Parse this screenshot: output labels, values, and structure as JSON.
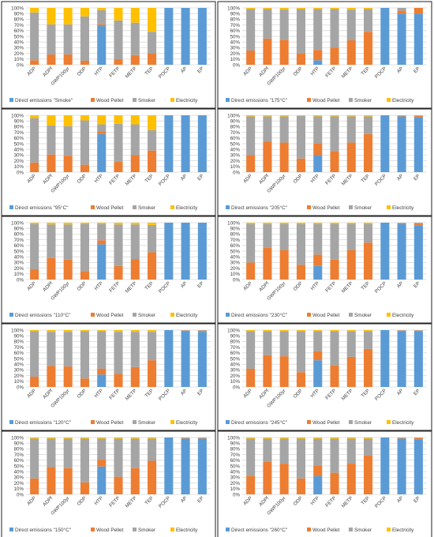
{
  "colors": {
    "direct": "#5b9bd5",
    "wood": "#ed7d31",
    "smoker": "#a5a5a5",
    "electricity": "#ffc000",
    "gridline": "#d9d9d9",
    "frame": "#222222",
    "text": "#404040"
  },
  "categories": [
    "ADP",
    "ADPf",
    "GWP100yr",
    "ODP",
    "HTP",
    "FETP",
    "METP",
    "TEP",
    "POCP",
    "AP",
    "EP"
  ],
  "yticks": [
    "0%",
    "10%",
    "20%",
    "30%",
    "40%",
    "50%",
    "60%",
    "70%",
    "80%",
    "90%",
    "100%"
  ],
  "series_labels": [
    "Wood Pellet",
    "Smoker",
    "Electricity"
  ],
  "chart_data": [
    {
      "type": "bar",
      "stacked": true,
      "legend_direct": "Direct emissions \"Smoke\"",
      "ylim": [
        0,
        100
      ],
      "series": [
        {
          "name": "Direct emissions \"Smoke\"",
          "values": [
            0,
            0,
            0,
            0,
            68,
            0,
            0,
            0,
            100,
            100,
            100
          ]
        },
        {
          "name": "Wood Pellet",
          "values": [
            8,
            18,
            18,
            7,
            3,
            10,
            17,
            20,
            0,
            0,
            0
          ]
        },
        {
          "name": "Smoker",
          "values": [
            84,
            53,
            53,
            78,
            25,
            68,
            57,
            38,
            0,
            0,
            0
          ]
        },
        {
          "name": "Electricity",
          "values": [
            8,
            29,
            29,
            15,
            4,
            22,
            26,
            42,
            0,
            0,
            0
          ]
        }
      ]
    },
    {
      "type": "bar",
      "stacked": true,
      "legend_direct": "Direct emissions \"175°C\"",
      "ylim": [
        0,
        100
      ],
      "series": [
        {
          "name": "Direct emissions \"175°C\"",
          "values": [
            0,
            0,
            0,
            0,
            8,
            0,
            0,
            0,
            100,
            90,
            90
          ]
        },
        {
          "name": "Wood Pellet",
          "values": [
            25,
            46,
            44,
            20,
            18,
            30,
            43,
            58,
            0,
            5,
            10
          ]
        },
        {
          "name": "Smoker",
          "values": [
            73,
            52,
            53,
            78,
            72,
            68,
            54,
            40,
            0,
            5,
            0
          ]
        },
        {
          "name": "Electricity",
          "values": [
            2,
            2,
            3,
            2,
            2,
            2,
            3,
            2,
            0,
            0,
            0
          ]
        }
      ]
    },
    {
      "type": "bar",
      "stacked": true,
      "legend_direct": "Direct emissions \"95°C\"",
      "ylim": [
        0,
        100
      ],
      "series": [
        {
          "name": "Direct emissions \"95°C\"",
          "values": [
            0,
            0,
            0,
            0,
            67,
            0,
            0,
            0,
            100,
            100,
            100
          ]
        },
        {
          "name": "Wood Pellet",
          "values": [
            17,
            31,
            29,
            13,
            5,
            18,
            30,
            38,
            0,
            0,
            0
          ]
        },
        {
          "name": "Smoker",
          "values": [
            78,
            51,
            52,
            78,
            12,
            67,
            54,
            36,
            0,
            0,
            0
          ]
        },
        {
          "name": "Electricity",
          "values": [
            5,
            18,
            19,
            9,
            16,
            15,
            16,
            26,
            0,
            0,
            0
          ]
        }
      ]
    },
    {
      "type": "bar",
      "stacked": true,
      "legend_direct": "Direct emissions \"205°C\"",
      "ylim": [
        0,
        100
      ],
      "series": [
        {
          "name": "Direct emissions \"205°C\"",
          "values": [
            0,
            0,
            0,
            0,
            30,
            0,
            0,
            0,
            100,
            98,
            97
          ]
        },
        {
          "name": "Wood Pellet",
          "values": [
            30,
            54,
            52,
            24,
            20,
            37,
            52,
            67,
            0,
            1,
            2
          ]
        },
        {
          "name": "Smoker",
          "values": [
            68,
            44,
            46,
            75,
            48,
            61,
            46,
            31,
            0,
            1,
            1
          ]
        },
        {
          "name": "Electricity",
          "values": [
            2,
            2,
            2,
            1,
            2,
            2,
            2,
            2,
            0,
            0,
            0
          ]
        }
      ]
    },
    {
      "type": "bar",
      "stacked": true,
      "legend_direct": "Direct emissions \"110°C\"",
      "ylim": [
        0,
        100
      ],
      "series": [
        {
          "name": "Direct emissions \"110°C\"",
          "values": [
            0,
            0,
            0,
            0,
            62,
            0,
            0,
            0,
            100,
            100,
            100
          ]
        },
        {
          "name": "Wood Pellet",
          "values": [
            18,
            38,
            35,
            15,
            7,
            24,
            36,
            48,
            0,
            0,
            0
          ]
        },
        {
          "name": "Smoker",
          "values": [
            80,
            59,
            62,
            83,
            29,
            73,
            61,
            48,
            0,
            0,
            0
          ]
        },
        {
          "name": "Electricity",
          "values": [
            2,
            3,
            3,
            2,
            2,
            3,
            3,
            4,
            0,
            0,
            0
          ]
        }
      ]
    },
    {
      "type": "bar",
      "stacked": true,
      "legend_direct": "Direct emissions \"230°C\"",
      "ylim": [
        0,
        100
      ],
      "series": [
        {
          "name": "Direct emissions \"230°C\"",
          "values": [
            0,
            0,
            0,
            0,
            24,
            0,
            0,
            0,
            100,
            98,
            95
          ]
        },
        {
          "name": "Wood Pellet",
          "values": [
            30,
            56,
            52,
            26,
            20,
            35,
            52,
            65,
            0,
            1,
            3
          ]
        },
        {
          "name": "Smoker",
          "values": [
            68,
            42,
            46,
            72,
            54,
            63,
            46,
            33,
            0,
            1,
            2
          ]
        },
        {
          "name": "Electricity",
          "values": [
            2,
            2,
            2,
            2,
            2,
            2,
            2,
            2,
            0,
            0,
            0
          ]
        }
      ]
    },
    {
      "type": "bar",
      "stacked": true,
      "legend_direct": "Direct emissions \"120°C\"",
      "ylim": [
        0,
        100
      ],
      "series": [
        {
          "name": "Direct emissions \"120°C\"",
          "values": [
            0,
            0,
            0,
            0,
            22,
            0,
            0,
            0,
            100,
            98,
            97
          ]
        },
        {
          "name": "Wood Pellet",
          "values": [
            18,
            37,
            36,
            15,
            10,
            23,
            35,
            47,
            0,
            1,
            2
          ]
        },
        {
          "name": "Smoker",
          "values": [
            80,
            60,
            61,
            83,
            66,
            74,
            62,
            50,
            0,
            1,
            1
          ]
        },
        {
          "name": "Electricity",
          "values": [
            2,
            3,
            3,
            2,
            2,
            3,
            3,
            3,
            0,
            0,
            0
          ]
        }
      ]
    },
    {
      "type": "bar",
      "stacked": true,
      "legend_direct": "Direct emissions \"245°C\"",
      "ylim": [
        0,
        100
      ],
      "series": [
        {
          "name": "Direct emissions \"245°C\"",
          "values": [
            0,
            0,
            0,
            0,
            47,
            0,
            0,
            0,
            100,
            98,
            98
          ]
        },
        {
          "name": "Wood Pellet",
          "values": [
            32,
            56,
            54,
            26,
            16,
            38,
            53,
            67,
            0,
            1,
            1
          ]
        },
        {
          "name": "Smoker",
          "values": [
            66,
            42,
            44,
            72,
            35,
            60,
            45,
            31,
            0,
            1,
            1
          ]
        },
        {
          "name": "Electricity",
          "values": [
            2,
            2,
            2,
            2,
            2,
            2,
            2,
            2,
            0,
            0,
            0
          ]
        }
      ]
    },
    {
      "type": "bar",
      "stacked": true,
      "legend_direct": "Direct emissions \"150°C\"",
      "ylim": [
        0,
        100
      ],
      "series": [
        {
          "name": "Direct emissions \"150°C\"",
          "values": [
            0,
            0,
            0,
            0,
            49,
            0,
            0,
            0,
            100,
            98,
            98
          ]
        },
        {
          "name": "Wood Pellet",
          "values": [
            28,
            48,
            46,
            21,
            12,
            31,
            46,
            59,
            0,
            1,
            1
          ]
        },
        {
          "name": "Smoker",
          "values": [
            70,
            50,
            52,
            77,
            37,
            67,
            52,
            39,
            0,
            1,
            1
          ]
        },
        {
          "name": "Electricity",
          "values": [
            2,
            2,
            2,
            2,
            2,
            2,
            2,
            2,
            0,
            0,
            0
          ]
        }
      ]
    },
    {
      "type": "bar",
      "stacked": true,
      "legend_direct": "Direct emissions \"260°C\"",
      "ylim": [
        0,
        100
      ],
      "series": [
        {
          "name": "Direct emissions \"260°C\"",
          "values": [
            0,
            0,
            0,
            0,
            32,
            0,
            0,
            0,
            100,
            98,
            97
          ]
        },
        {
          "name": "Wood Pellet",
          "values": [
            32,
            58,
            54,
            28,
            18,
            38,
            54,
            69,
            0,
            1,
            2
          ]
        },
        {
          "name": "Smoker",
          "values": [
            66,
            40,
            44,
            70,
            48,
            60,
            44,
            29,
            0,
            1,
            1
          ]
        },
        {
          "name": "Electricity",
          "values": [
            2,
            2,
            2,
            2,
            2,
            2,
            2,
            2,
            0,
            0,
            0
          ]
        }
      ]
    }
  ]
}
